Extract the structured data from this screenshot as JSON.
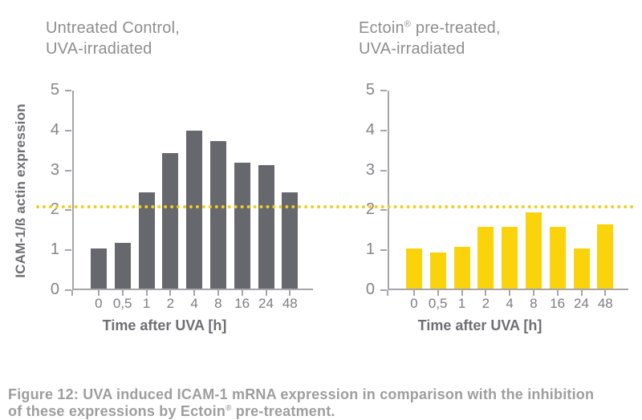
{
  "figure": {
    "caption_lines": [
      [
        {
          "text": "Figure 12: UVA induced ICAM-1 mRNA expression in comparison with the inhibition"
        }
      ],
      [
        {
          "text": "of these expressions by Ectoin"
        },
        {
          "sup": "®"
        },
        {
          "text": " pre-treatment."
        }
      ]
    ]
  },
  "colors": {
    "bar_gray": "#67676e",
    "bar_yellow": "#fbd30a",
    "threshold_yellow": "#f2cd1f",
    "axis_gray": "#a5a5aa",
    "title_gray": "#8e8e8e",
    "tick_label_gray": "#84848a",
    "axis_title_gray": "#6e6e75",
    "caption_gray": "#9e9e9e"
  },
  "chart_data": [
    {
      "type": "bar",
      "title": "Untreated Control, UVA-irradiated",
      "title_lines": [
        [
          {
            "text": "Untreated Control,"
          }
        ],
        [
          {
            "text": "UVA-irradiated"
          }
        ]
      ],
      "categories": [
        "0",
        "0,5",
        "1",
        "2",
        "4",
        "8",
        "16",
        "24",
        "48"
      ],
      "values": [
        1.0,
        1.15,
        2.4,
        3.4,
        3.95,
        3.7,
        3.15,
        3.1,
        2.4
      ],
      "bar_color": "#67676e",
      "xlabel": "Time after UVA [h]",
      "ylabel": "ICAM-1/ß actin expression",
      "ylim": [
        0,
        5
      ],
      "yticks": [
        0,
        1,
        2,
        3,
        4,
        5
      ],
      "grid": false,
      "legend": "none",
      "reference_line": {
        "value": 2.08,
        "color": "#f2cd1f",
        "style": "dotted"
      }
    },
    {
      "type": "bar",
      "title": "Ectoin® pre-treated, UVA-irradiated",
      "title_lines": [
        [
          {
            "text": "Ectoin"
          },
          {
            "sup": "®"
          },
          {
            "text": " pre-treated,"
          }
        ],
        [
          {
            "text": "UVA-irradiated"
          }
        ]
      ],
      "categories": [
        "0",
        "0,5",
        "1",
        "2",
        "4",
        "8",
        "16",
        "24",
        "48"
      ],
      "values": [
        1.0,
        0.9,
        1.05,
        1.55,
        1.55,
        1.9,
        1.55,
        1.0,
        1.6
      ],
      "bar_color": "#fbd30a",
      "xlabel": "Time after UVA [h]",
      "ylabel": "",
      "ylim": [
        0,
        5
      ],
      "yticks": [
        0,
        1,
        2,
        3,
        4,
        5
      ],
      "grid": false,
      "legend": "none",
      "reference_line": {
        "value": 2.08,
        "color": "#f2cd1f",
        "style": "dotted"
      }
    }
  ]
}
